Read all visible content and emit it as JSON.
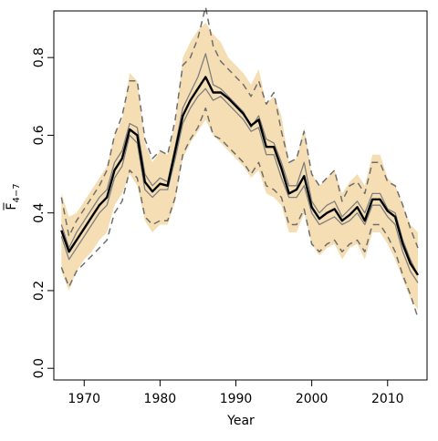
{
  "chart_data": {
    "type": "line",
    "title": "",
    "xlabel": "Year",
    "ylabel": {
      "base": "F",
      "subscript": "4−7"
    },
    "xlim": [
      1966,
      2015.2
    ],
    "ylim": [
      -0.03,
      0.92
    ],
    "x_ticks": [
      {
        "value": 1970,
        "label": "1970"
      },
      {
        "value": 1980,
        "label": "1980"
      },
      {
        "value": 1990,
        "label": "1990"
      },
      {
        "value": 2000,
        "label": "2000"
      },
      {
        "value": 2010,
        "label": "2010"
      }
    ],
    "y_ticks": [
      {
        "value": 0.0,
        "label": "0.0"
      },
      {
        "value": 0.2,
        "label": "0.2"
      },
      {
        "value": 0.4,
        "label": "0.4"
      },
      {
        "value": 0.6,
        "label": "0.6"
      },
      {
        "value": 0.8,
        "label": "0.8"
      }
    ],
    "grid": false,
    "colors": {
      "band_fill": "#f5deb3",
      "estimate_line": "#000000",
      "gray_line": "#7f7f7f",
      "dashed_line": "#6e6e6e",
      "axis": "#000000"
    },
    "x": [
      1967,
      1968,
      1969,
      1970,
      1971,
      1972,
      1973,
      1974,
      1975,
      1976,
      1977,
      1978,
      1979,
      1980,
      1981,
      1982,
      1983,
      1984,
      1985,
      1986,
      1987,
      1988,
      1989,
      1990,
      1991,
      1992,
      1993,
      1994,
      1995,
      1996,
      1997,
      1998,
      1999,
      2000,
      2001,
      2002,
      2003,
      2004,
      2005,
      2006,
      2007,
      2008,
      2009,
      2010,
      2011,
      2012,
      2013,
      2014
    ],
    "series": [
      {
        "role": "band",
        "lower": [
          0.25,
          0.2,
          0.25,
          0.28,
          0.3,
          0.33,
          0.35,
          0.42,
          0.45,
          0.5,
          0.47,
          0.38,
          0.35,
          0.37,
          0.37,
          0.43,
          0.54,
          0.58,
          0.61,
          0.64,
          0.6,
          0.58,
          0.56,
          0.54,
          0.52,
          0.49,
          0.51,
          0.45,
          0.44,
          0.42,
          0.35,
          0.35,
          0.4,
          0.32,
          0.29,
          0.31,
          0.32,
          0.28,
          0.31,
          0.32,
          0.28,
          0.35,
          0.35,
          0.32,
          0.28,
          0.23,
          0.18,
          0.15
        ],
        "upper": [
          0.45,
          0.39,
          0.4,
          0.43,
          0.46,
          0.49,
          0.52,
          0.6,
          0.64,
          0.76,
          0.74,
          0.58,
          0.53,
          0.56,
          0.55,
          0.63,
          0.8,
          0.84,
          0.87,
          0.89,
          0.86,
          0.84,
          0.8,
          0.78,
          0.76,
          0.73,
          0.77,
          0.68,
          0.7,
          0.65,
          0.53,
          0.54,
          0.62,
          0.5,
          0.47,
          0.49,
          0.51,
          0.45,
          0.48,
          0.5,
          0.47,
          0.55,
          0.55,
          0.49,
          0.47,
          0.42,
          0.37,
          0.35
        ]
      },
      {
        "role": "upper-dashed",
        "values": [
          0.44,
          0.34,
          0.38,
          0.41,
          0.44,
          0.47,
          0.51,
          0.6,
          0.65,
          0.74,
          0.74,
          0.59,
          0.54,
          0.56,
          0.55,
          0.64,
          0.78,
          0.8,
          0.85,
          0.93,
          0.83,
          0.79,
          0.77,
          0.75,
          0.73,
          0.7,
          0.74,
          0.68,
          0.71,
          0.61,
          0.53,
          0.54,
          0.61,
          0.5,
          0.47,
          0.49,
          0.51,
          0.43,
          0.47,
          0.48,
          0.45,
          0.53,
          0.53,
          0.48,
          0.47,
          0.42,
          0.36,
          0.31
        ]
      },
      {
        "role": "upper-gray",
        "values": [
          0.37,
          0.31,
          0.35,
          0.38,
          0.41,
          0.44,
          0.46,
          0.53,
          0.56,
          0.63,
          0.62,
          0.5,
          0.47,
          0.49,
          0.48,
          0.57,
          0.67,
          0.71,
          0.75,
          0.81,
          0.73,
          0.72,
          0.7,
          0.68,
          0.66,
          0.62,
          0.65,
          0.59,
          0.58,
          0.53,
          0.47,
          0.47,
          0.53,
          0.43,
          0.4,
          0.42,
          0.43,
          0.39,
          0.41,
          0.43,
          0.4,
          0.45,
          0.45,
          0.41,
          0.4,
          0.33,
          0.28,
          0.24
        ]
      },
      {
        "role": "estimate",
        "values": [
          0.355,
          0.3,
          0.33,
          0.36,
          0.39,
          0.42,
          0.44,
          0.51,
          0.54,
          0.615,
          0.6,
          0.48,
          0.455,
          0.475,
          0.47,
          0.56,
          0.65,
          0.69,
          0.72,
          0.75,
          0.71,
          0.71,
          0.695,
          0.675,
          0.655,
          0.625,
          0.64,
          0.57,
          0.57,
          0.515,
          0.45,
          0.46,
          0.495,
          0.415,
          0.385,
          0.4,
          0.41,
          0.38,
          0.395,
          0.415,
          0.38,
          0.435,
          0.435,
          0.405,
          0.39,
          0.32,
          0.27,
          0.24
        ]
      },
      {
        "role": "lower-gray",
        "values": [
          0.34,
          0.28,
          0.31,
          0.34,
          0.37,
          0.4,
          0.42,
          0.49,
          0.52,
          0.6,
          0.58,
          0.46,
          0.44,
          0.46,
          0.46,
          0.54,
          0.63,
          0.67,
          0.7,
          0.72,
          0.69,
          0.7,
          0.68,
          0.66,
          0.64,
          0.61,
          0.62,
          0.55,
          0.55,
          0.49,
          0.44,
          0.44,
          0.47,
          0.4,
          0.37,
          0.38,
          0.39,
          0.37,
          0.38,
          0.4,
          0.37,
          0.42,
          0.42,
          0.39,
          0.37,
          0.3,
          0.25,
          0.22
        ]
      },
      {
        "role": "lower-dashed",
        "values": [
          0.26,
          0.21,
          0.25,
          0.27,
          0.29,
          0.31,
          0.33,
          0.4,
          0.43,
          0.51,
          0.49,
          0.39,
          0.37,
          0.38,
          0.38,
          0.44,
          0.55,
          0.59,
          0.62,
          0.67,
          0.6,
          0.59,
          0.57,
          0.55,
          0.53,
          0.5,
          0.53,
          0.47,
          0.46,
          0.44,
          0.37,
          0.37,
          0.41,
          0.32,
          0.3,
          0.32,
          0.33,
          0.3,
          0.32,
          0.33,
          0.3,
          0.37,
          0.37,
          0.34,
          0.3,
          0.24,
          0.19,
          0.13
        ]
      }
    ]
  }
}
